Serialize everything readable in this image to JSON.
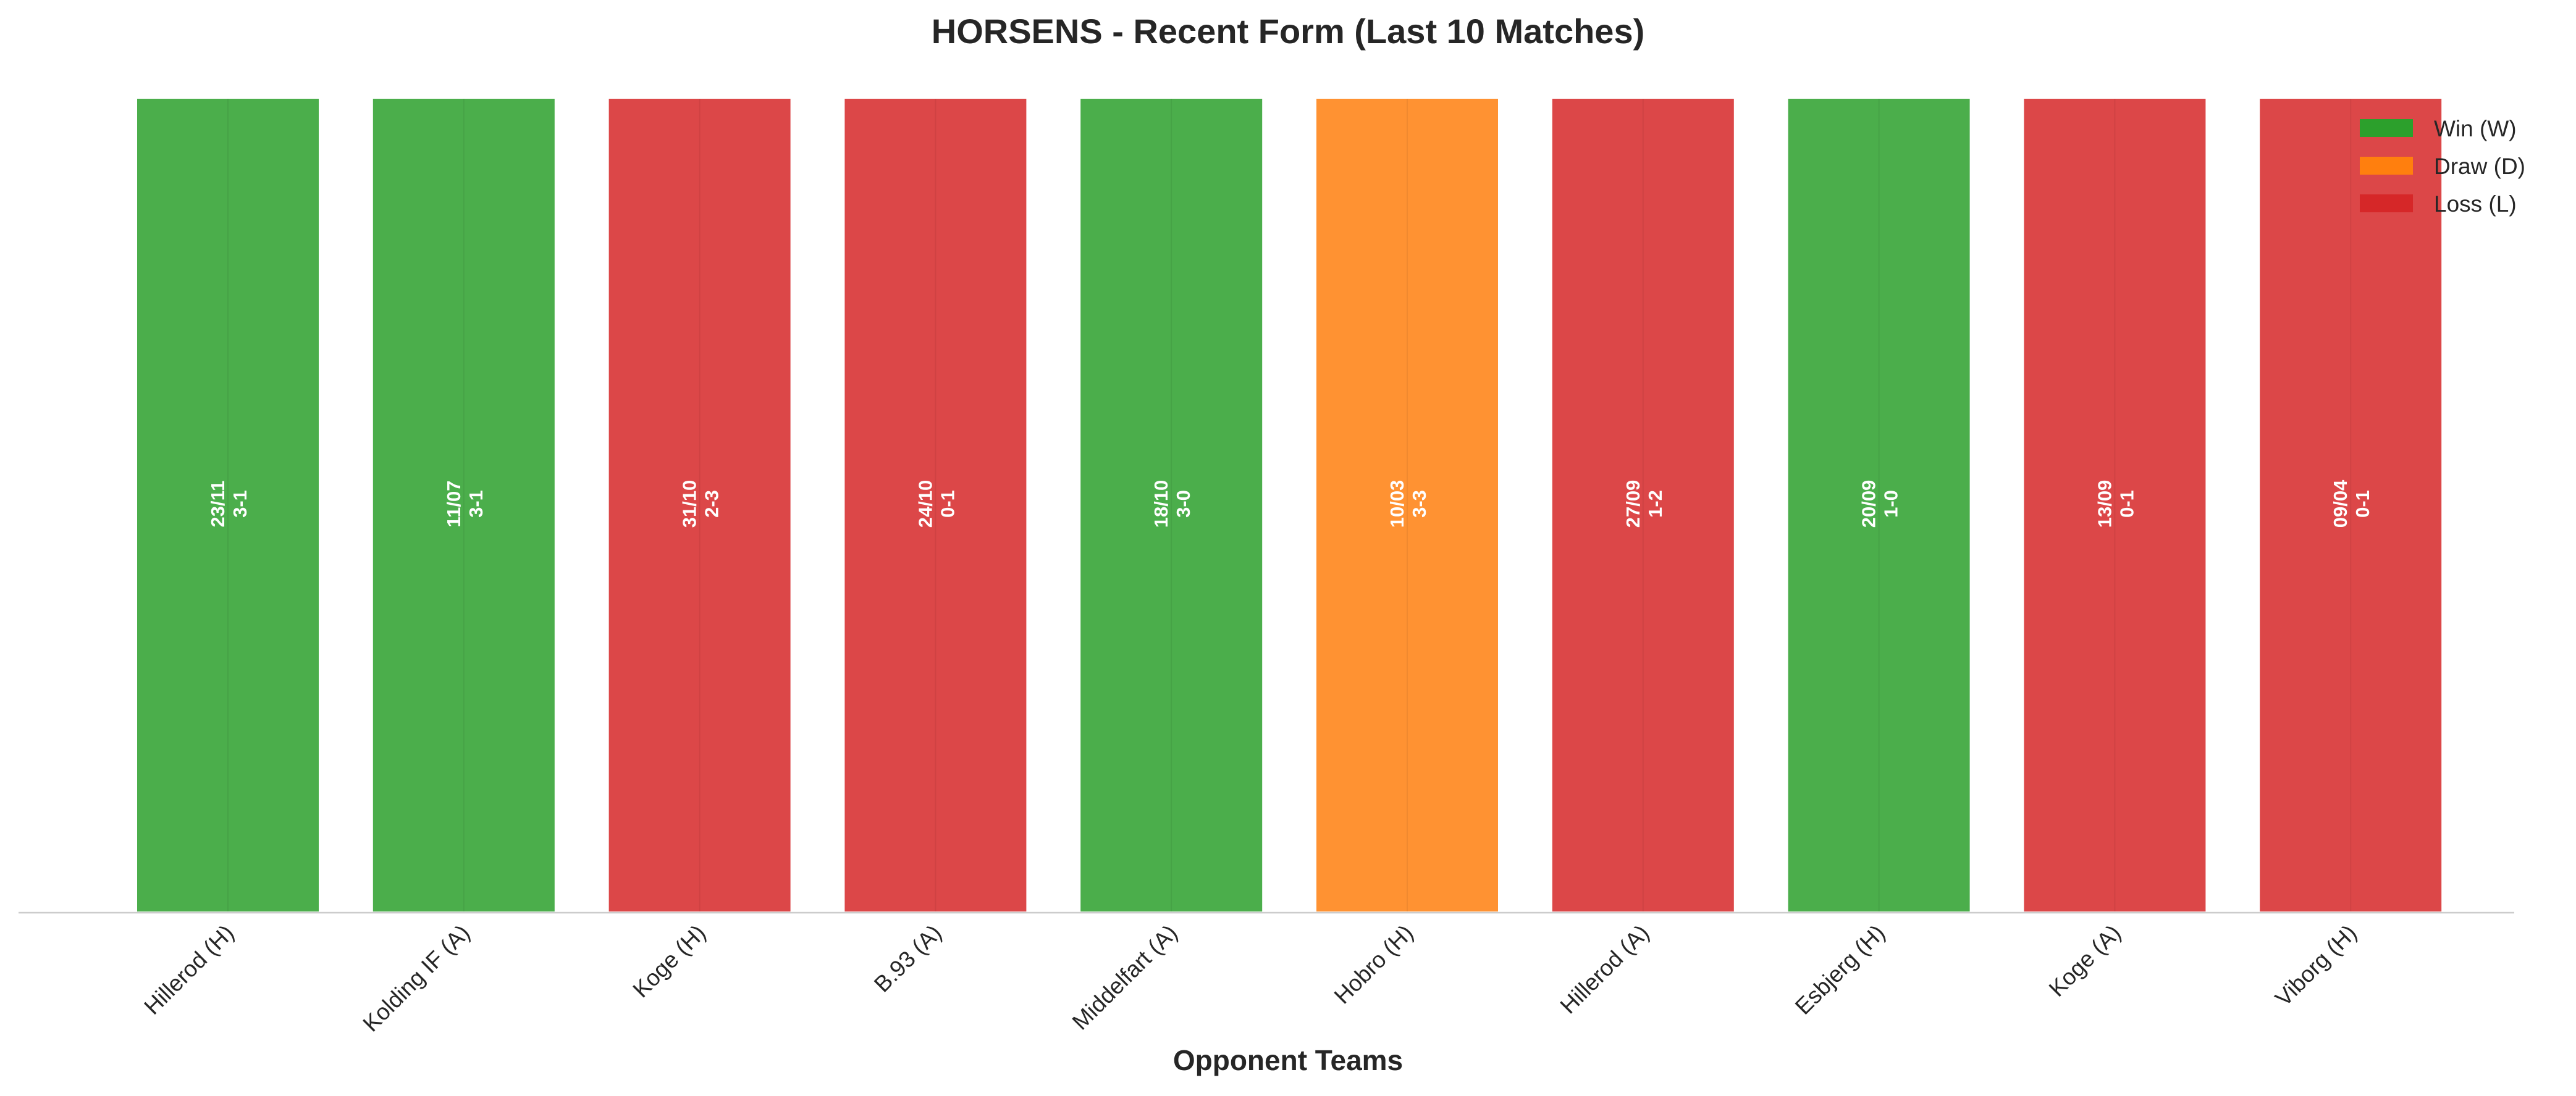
{
  "chart_data": {
    "type": "bar",
    "title": "HORSENS - Recent Form (Last 10 Matches)",
    "xlabel": "Opponent Teams",
    "ylabel": "",
    "ylim": [
      0,
      1
    ],
    "grid": false,
    "legend_position": "top-right",
    "categories": [
      "Hillerod (H)",
      "Kolding IF (A)",
      "Koge (H)",
      "B.93 (A)",
      "Middelfart (A)",
      "Hobro (H)",
      "Hillerod (A)",
      "Esbjerg (H)",
      "Koge (A)",
      "Viborg (H)"
    ],
    "values": [
      1,
      1,
      1,
      1,
      1,
      1,
      1,
      1,
      1,
      1
    ],
    "results": [
      "W",
      "W",
      "L",
      "L",
      "W",
      "D",
      "L",
      "W",
      "L",
      "L"
    ],
    "dates": [
      "23/11",
      "11/07",
      "31/10",
      "24/10",
      "18/10",
      "10/03",
      "27/09",
      "20/09",
      "13/09",
      "09/04"
    ],
    "scores": [
      "3-1",
      "3-1",
      "2-3",
      "0-1",
      "3-0",
      "3-3",
      "1-2",
      "1-0",
      "0-1",
      "0-1"
    ],
    "legend": [
      {
        "key": "W",
        "label": "Win (W)",
        "color": "#2ca02c"
      },
      {
        "key": "D",
        "label": "Draw (D)",
        "color": "#ff7f0e"
      },
      {
        "key": "L",
        "label": "Loss (L)",
        "color": "#d62728"
      }
    ]
  }
}
